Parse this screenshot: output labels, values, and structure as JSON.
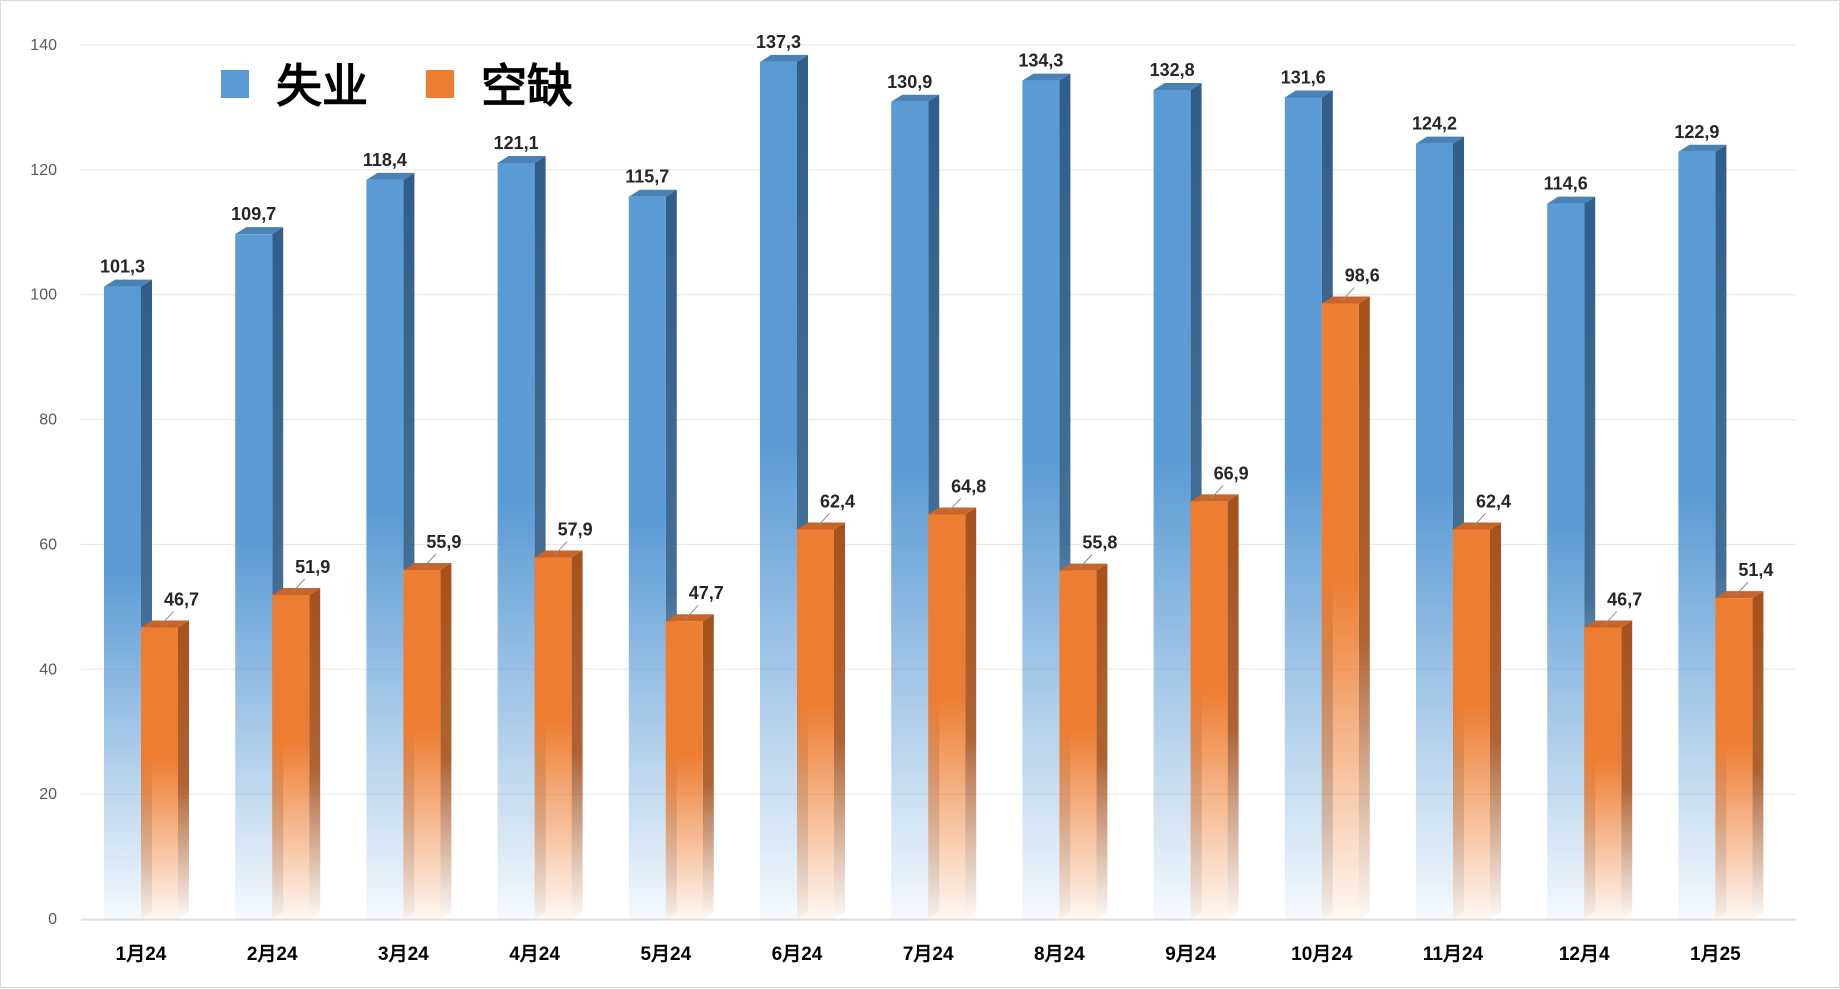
{
  "chart_data": {
    "type": "bar",
    "categories": [
      "1月24",
      "2月24",
      "3月24",
      "4月24",
      "5月24",
      "6月24",
      "7月24",
      "8月24",
      "9月24",
      "10月24",
      "11月24",
      "12月4",
      "1月25"
    ],
    "series": [
      {
        "name": "失业",
        "color": "#5b9bd5",
        "values": [
          101.3,
          109.7,
          118.4,
          121.1,
          115.7,
          137.3,
          130.9,
          134.3,
          132.8,
          131.6,
          124.2,
          114.6,
          122.9
        ],
        "labels": [
          "101,3",
          "109,7",
          "118,4",
          "121,1",
          "115,7",
          "137,3",
          "130,9",
          "134,3",
          "132,8",
          "131,6",
          "124,2",
          "114,6",
          "122,9"
        ]
      },
      {
        "name": "空缺",
        "color": "#ed7d31",
        "values": [
          46.7,
          51.9,
          55.9,
          57.9,
          47.7,
          62.4,
          64.8,
          55.8,
          66.9,
          98.6,
          62.4,
          46.7,
          51.4
        ],
        "labels": [
          "46,7",
          "51,9",
          "55,9",
          "57,9",
          "47,7",
          "62,4",
          "64,8",
          "55,8",
          "66,9",
          "98,6",
          "62,4",
          "46,7",
          "51,4"
        ]
      }
    ],
    "yticks": [
      0,
      20,
      40,
      60,
      80,
      100,
      120,
      140
    ],
    "ylim": [
      0,
      140
    ],
    "title": "",
    "xlabel": "",
    "ylabel": "",
    "legend_position": "top-left",
    "grid": true
  }
}
